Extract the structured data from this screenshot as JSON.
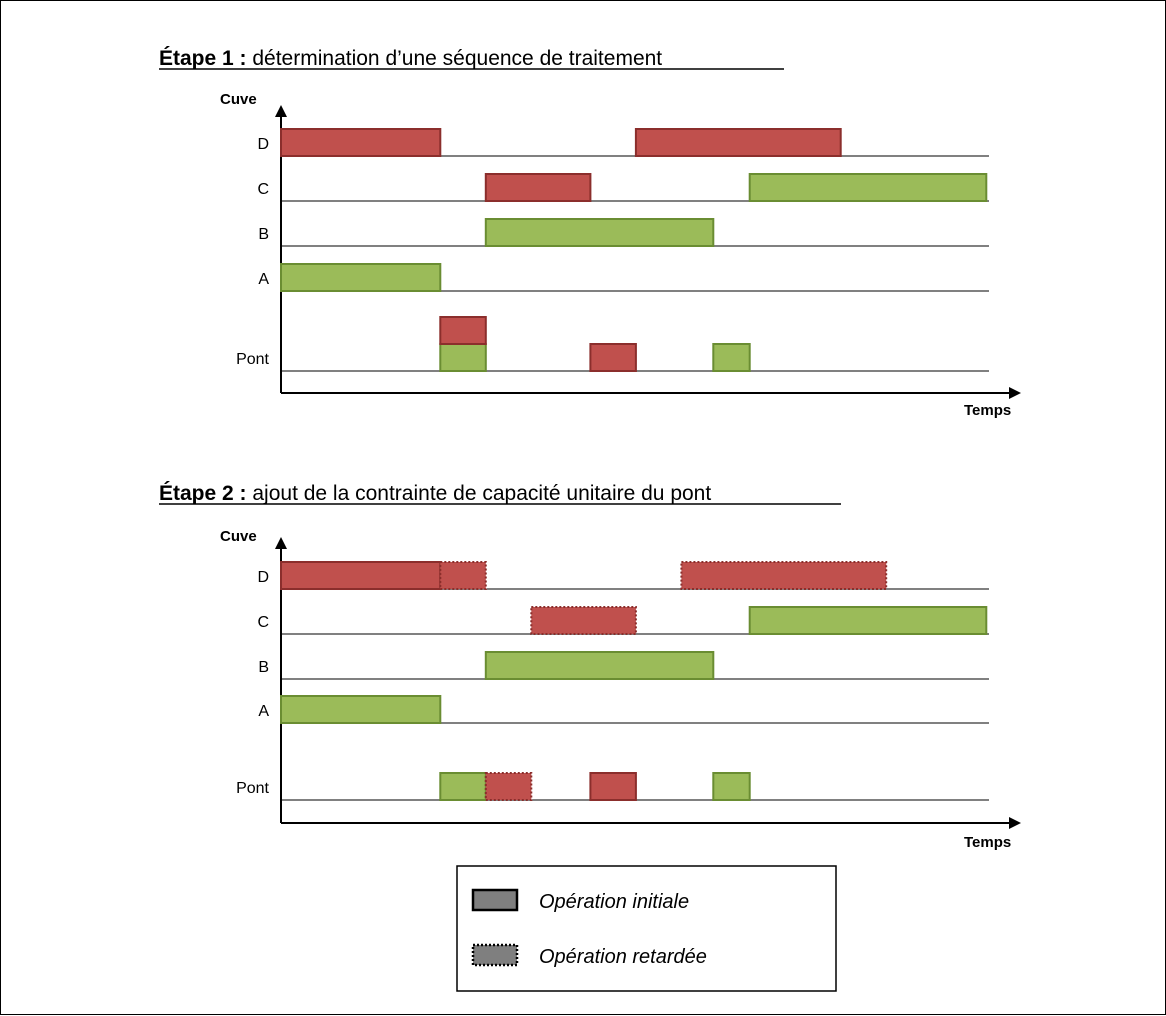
{
  "colors": {
    "red": "#c0504d",
    "red_border": "#8b2e2c",
    "green": "#9bbb59",
    "green_border": "#6a8d32",
    "legend_fill": "#7f7f7f"
  },
  "steps": [
    {
      "title_bold": "Étape 1 :",
      "title_rest": " détermination d’une séquence de traitement",
      "y_label": "Cuve",
      "x_label": "Temps",
      "lanes": [
        "D",
        "C",
        "B",
        "A",
        "Pont"
      ],
      "bars": [
        {
          "lane": "D",
          "start": 0.0,
          "end": 3.5,
          "color": "red",
          "style": "initial"
        },
        {
          "lane": "D",
          "start": 7.8,
          "end": 12.3,
          "color": "red",
          "style": "initial"
        },
        {
          "lane": "C",
          "start": 4.5,
          "end": 6.8,
          "color": "red",
          "style": "initial"
        },
        {
          "lane": "C",
          "start": 10.3,
          "end": 15.5,
          "color": "green",
          "style": "initial"
        },
        {
          "lane": "B",
          "start": 4.5,
          "end": 9.5,
          "color": "green",
          "style": "initial"
        },
        {
          "lane": "A",
          "start": 0.0,
          "end": 3.5,
          "color": "green",
          "style": "initial"
        },
        {
          "lane": "Pont",
          "start": 3.5,
          "end": 4.5,
          "color": "green",
          "style": "initial"
        },
        {
          "lane": "Pont",
          "start": 3.5,
          "end": 4.5,
          "color": "red",
          "style": "initial",
          "stack": 1
        },
        {
          "lane": "Pont",
          "start": 6.8,
          "end": 7.8,
          "color": "red",
          "style": "initial"
        },
        {
          "lane": "Pont",
          "start": 9.5,
          "end": 10.3,
          "color": "green",
          "style": "initial"
        }
      ]
    },
    {
      "title_bold": "Étape 2 :",
      "title_rest": " ajout de la contrainte de capacité unitaire du pont",
      "y_label": "Cuve",
      "x_label": "Temps",
      "lanes": [
        "D",
        "C",
        "B",
        "A",
        "Pont"
      ],
      "bars": [
        {
          "lane": "D",
          "start": 0.0,
          "end": 3.5,
          "color": "red",
          "style": "initial"
        },
        {
          "lane": "D",
          "start": 3.5,
          "end": 4.5,
          "color": "red",
          "style": "delayed"
        },
        {
          "lane": "D",
          "start": 8.8,
          "end": 13.3,
          "color": "red",
          "style": "delayed"
        },
        {
          "lane": "C",
          "start": 5.5,
          "end": 7.8,
          "color": "red",
          "style": "delayed"
        },
        {
          "lane": "C",
          "start": 10.3,
          "end": 15.5,
          "color": "green",
          "style": "initial"
        },
        {
          "lane": "B",
          "start": 4.5,
          "end": 9.5,
          "color": "green",
          "style": "initial"
        },
        {
          "lane": "A",
          "start": 0.0,
          "end": 3.5,
          "color": "green",
          "style": "initial"
        },
        {
          "lane": "Pont",
          "start": 3.5,
          "end": 4.5,
          "color": "green",
          "style": "initial"
        },
        {
          "lane": "Pont",
          "start": 4.5,
          "end": 5.5,
          "color": "red",
          "style": "delayed"
        },
        {
          "lane": "Pont",
          "start": 6.8,
          "end": 7.8,
          "color": "red",
          "style": "initial"
        },
        {
          "lane": "Pont",
          "start": 9.5,
          "end": 10.3,
          "color": "green",
          "style": "initial"
        }
      ]
    }
  ],
  "legend": {
    "initial_label": "Opération initiale",
    "delayed_label": "Opération retardée"
  }
}
